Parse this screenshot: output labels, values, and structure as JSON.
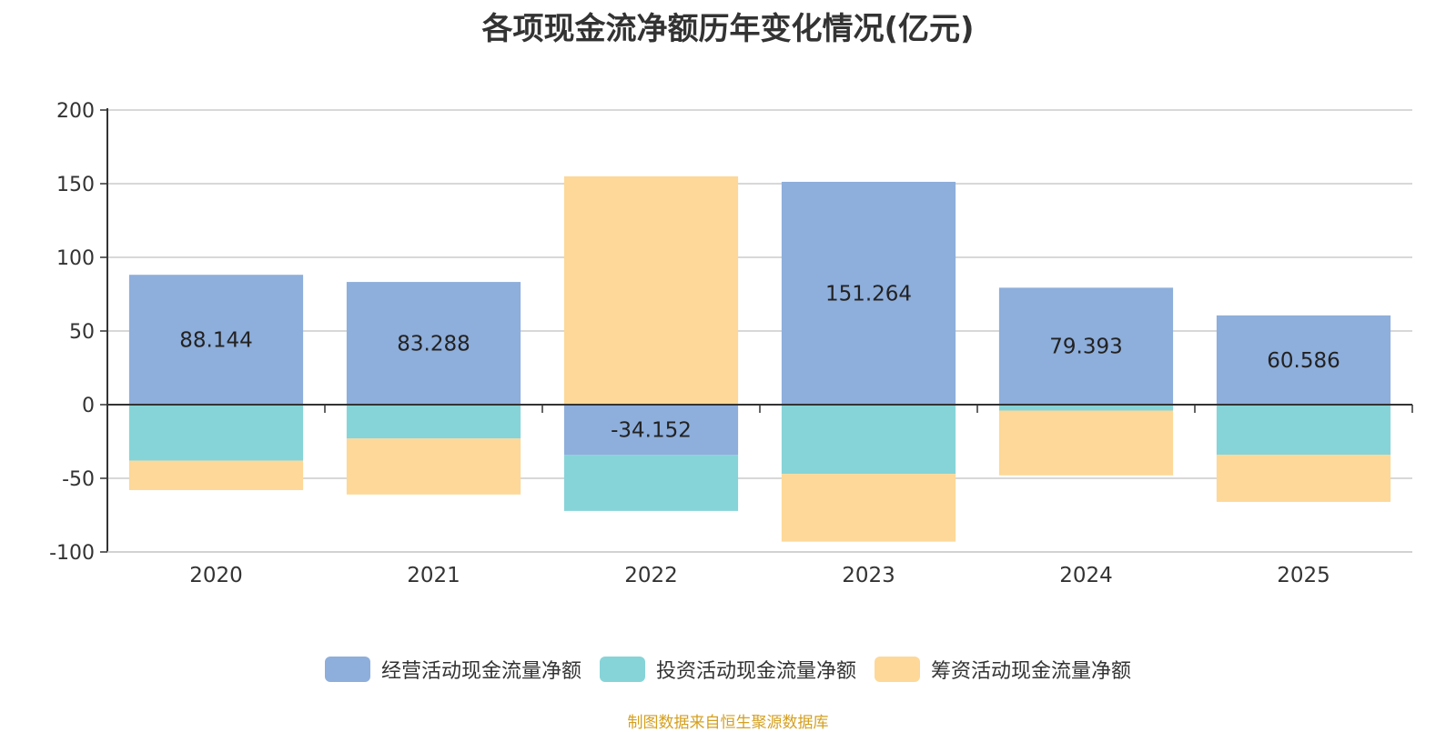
{
  "chart_data": {
    "type": "bar",
    "stacked": true,
    "title": "各项现金流净额历年变化情况(亿元)",
    "categories": [
      "2020",
      "2021",
      "2022",
      "2023",
      "2024",
      "2025"
    ],
    "ylim": [
      -100,
      200
    ],
    "yticks": [
      200,
      150,
      100,
      50,
      0,
      -50,
      -100
    ],
    "grid": true,
    "legend_position": "bottom",
    "series": [
      {
        "name": "经营活动现金流量净额",
        "color": "#8eaedb",
        "values": [
          88.144,
          83.288,
          -34.152,
          151.264,
          79.393,
          60.586
        ],
        "labels": [
          "88.144",
          "83.288",
          "-34.152",
          "151.264",
          "79.393",
          "60.586"
        ]
      },
      {
        "name": "投资活动现金流量净额",
        "color": "#86d4d8",
        "values": [
          -38,
          -23,
          -38,
          -47,
          -4,
          -34
        ]
      },
      {
        "name": "筹资活动现金流量净额",
        "color": "#fdd898",
        "values": [
          -20,
          -38,
          155,
          -46,
          -44,
          -32
        ]
      }
    ]
  },
  "source_note": "制图数据来自恒生聚源数据库"
}
